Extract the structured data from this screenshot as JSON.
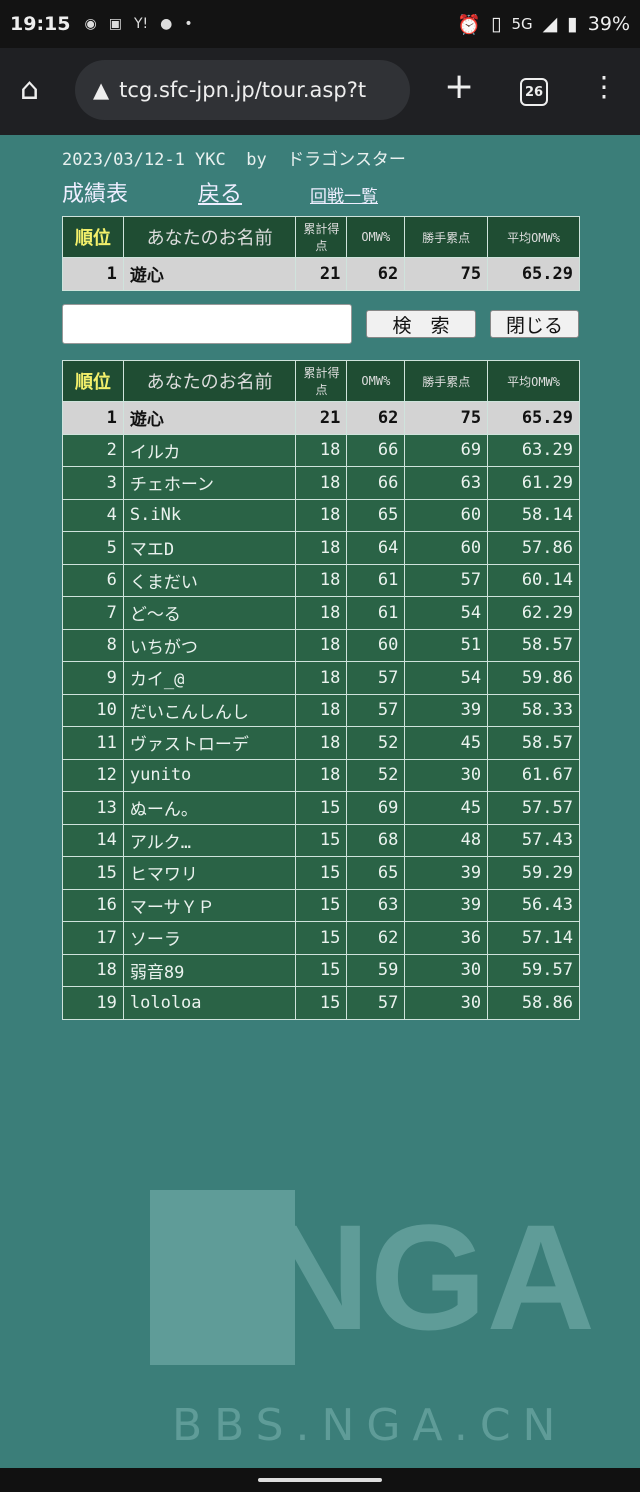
{
  "status_bar": {
    "time": "19:15",
    "icons": [
      "discord-icon",
      "pass-icon",
      "yahoo-icon",
      "line-icon",
      "dot-icon"
    ],
    "right_icons": [
      "alarm-icon",
      "vibrate-icon",
      "signal-icon",
      "battery-icon"
    ],
    "network": "5G",
    "battery": "39%"
  },
  "browser": {
    "url": "tcg.sfc-jpn.jp/tour.asp?t",
    "tab_count": "26"
  },
  "page": {
    "title": "2023/03/12-1 YKC  by  ドラゴンスター",
    "heading": "成績表",
    "back_link": "戻る",
    "rounds_link": "回戦一覧"
  },
  "columns": [
    "順位",
    "あなたのお名前",
    "累計得点",
    "OMW%",
    "勝手累点",
    "平均OMW%"
  ],
  "my_row": {
    "rank": "1",
    "name": "遊心",
    "points": "21",
    "omw": "62",
    "kattei": "75",
    "avg_omw": "65.29"
  },
  "search": {
    "value": "",
    "search_button": "検　索",
    "close_button": "閉じる"
  },
  "rows": [
    {
      "rank": "1",
      "name": "遊心",
      "points": "21",
      "omw": "62",
      "kattei": "75",
      "avg_omw": "65.29"
    },
    {
      "rank": "2",
      "name": "イルカ",
      "points": "18",
      "omw": "66",
      "kattei": "69",
      "avg_omw": "63.29"
    },
    {
      "rank": "3",
      "name": "チェホーン",
      "points": "18",
      "omw": "66",
      "kattei": "63",
      "avg_omw": "61.29"
    },
    {
      "rank": "4",
      "name": "S.iNk",
      "points": "18",
      "omw": "65",
      "kattei": "60",
      "avg_omw": "58.14"
    },
    {
      "rank": "5",
      "name": "マエD",
      "points": "18",
      "omw": "64",
      "kattei": "60",
      "avg_omw": "57.86"
    },
    {
      "rank": "6",
      "name": "くまだい",
      "points": "18",
      "omw": "61",
      "kattei": "57",
      "avg_omw": "60.14"
    },
    {
      "rank": "7",
      "name": "ど～る",
      "points": "18",
      "omw": "61",
      "kattei": "54",
      "avg_omw": "62.29"
    },
    {
      "rank": "8",
      "name": "いちがつ",
      "points": "18",
      "omw": "60",
      "kattei": "51",
      "avg_omw": "58.57"
    },
    {
      "rank": "9",
      "name": "カイ_@",
      "points": "18",
      "omw": "57",
      "kattei": "54",
      "avg_omw": "59.86"
    },
    {
      "rank": "10",
      "name": "だいこんしんし",
      "points": "18",
      "omw": "57",
      "kattei": "39",
      "avg_omw": "58.33"
    },
    {
      "rank": "11",
      "name": "ヴァストローデ",
      "points": "18",
      "omw": "52",
      "kattei": "45",
      "avg_omw": "58.57"
    },
    {
      "rank": "12",
      "name": "yunito",
      "points": "18",
      "omw": "52",
      "kattei": "30",
      "avg_omw": "61.67"
    },
    {
      "rank": "13",
      "name": "ぬーん。",
      "points": "15",
      "omw": "69",
      "kattei": "45",
      "avg_omw": "57.57"
    },
    {
      "rank": "14",
      "name": "アルク…",
      "points": "15",
      "omw": "68",
      "kattei": "48",
      "avg_omw": "57.43"
    },
    {
      "rank": "15",
      "name": "ヒマワリ",
      "points": "15",
      "omw": "65",
      "kattei": "39",
      "avg_omw": "59.29"
    },
    {
      "rank": "16",
      "name": "マーサＹＰ",
      "points": "15",
      "omw": "63",
      "kattei": "39",
      "avg_omw": "56.43"
    },
    {
      "rank": "17",
      "name": "ソーラ",
      "points": "15",
      "omw": "62",
      "kattei": "36",
      "avg_omw": "57.14"
    },
    {
      "rank": "18",
      "name": "弱音89",
      "points": "15",
      "omw": "59",
      "kattei": "30",
      "avg_omw": "59.57"
    },
    {
      "rank": "19",
      "name": "lololoa",
      "points": "15",
      "omw": "57",
      "kattei": "30",
      "avg_omw": "58.86"
    }
  ],
  "watermark": {
    "logo": "NGA",
    "site": "BBS.NGA.CN"
  }
}
